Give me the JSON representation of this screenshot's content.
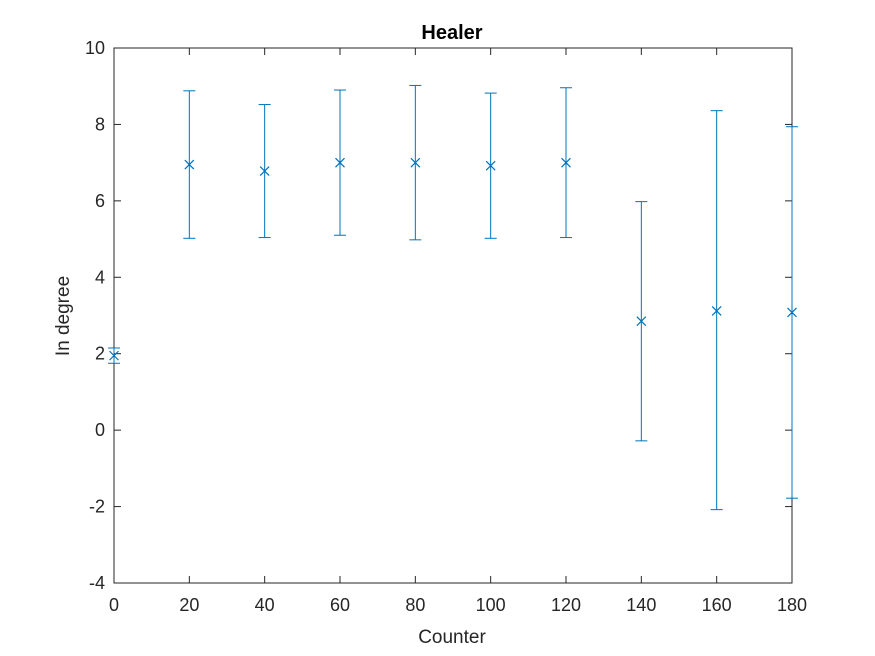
{
  "chart_data": {
    "type": "errorbar",
    "title": "Healer",
    "xlabel": "Counter",
    "ylabel": "In degree",
    "xlim": [
      0,
      180
    ],
    "ylim": [
      -4,
      10
    ],
    "xticks": [
      0,
      20,
      40,
      60,
      80,
      100,
      120,
      140,
      160,
      180
    ],
    "yticks": [
      -4,
      -2,
      0,
      2,
      4,
      6,
      8,
      10
    ],
    "grid": false,
    "marker": "x",
    "series_color": "#0072BD",
    "axis_color": "#262626",
    "points": [
      {
        "x": 0,
        "y": 1.95,
        "lower": 1.75,
        "upper": 2.15
      },
      {
        "x": 20,
        "y": 6.95,
        "lower": 5.02,
        "upper": 8.88
      },
      {
        "x": 40,
        "y": 6.78,
        "lower": 5.04,
        "upper": 8.52
      },
      {
        "x": 60,
        "y": 7.0,
        "lower": 5.1,
        "upper": 8.9
      },
      {
        "x": 80,
        "y": 7.0,
        "lower": 4.98,
        "upper": 9.02
      },
      {
        "x": 100,
        "y": 6.92,
        "lower": 5.02,
        "upper": 8.82
      },
      {
        "x": 120,
        "y": 7.0,
        "lower": 5.04,
        "upper": 8.96
      },
      {
        "x": 140,
        "y": 2.85,
        "lower": -0.28,
        "upper": 5.98
      },
      {
        "x": 160,
        "y": 3.12,
        "lower": -2.08,
        "upper": 8.36
      },
      {
        "x": 180,
        "y": 3.08,
        "lower": -1.78,
        "upper": 7.94
      }
    ]
  }
}
